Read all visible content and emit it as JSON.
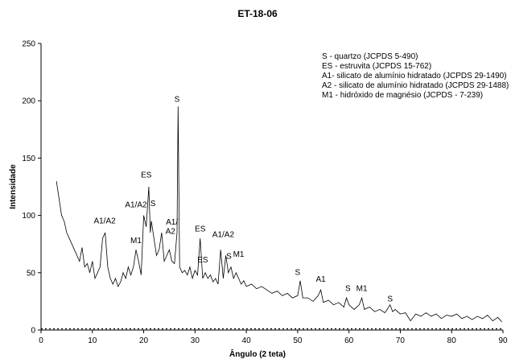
{
  "chart_data": {
    "type": "line",
    "title": "ET-18-06",
    "xlabel": "Ângulo (2 teta)",
    "ylabel": "Intensidade",
    "xlim": [
      0,
      90
    ],
    "ylim": [
      0,
      250
    ],
    "xticks": [
      0,
      10,
      20,
      30,
      40,
      50,
      60,
      70,
      80,
      90
    ],
    "yticks": [
      0,
      50,
      100,
      150,
      200,
      250
    ],
    "color": "#000000",
    "legend_lines": [
      "S - quartzo (JCPDS 5-490)",
      "ES - estruvita (JCPDS 15-762)",
      "A1- silicato de alumínio hidratado (JCPDS 29-1490)",
      "A2 - silicato de alumínio hidratado (JCPDS 29-1488)",
      "M1 - hidróxido de magnésio (JCPDS - 7-239)"
    ],
    "annotations": [
      {
        "text": "A1/A2",
        "x": 12.4,
        "y": 93
      },
      {
        "text": "ES",
        "x": 20.5,
        "y": 133
      },
      {
        "text": "A1/A2",
        "x": 18.5,
        "y": 107
      },
      {
        "text": "S",
        "x": 21.8,
        "y": 108
      },
      {
        "text": "M1",
        "x": 18.5,
        "y": 76
      },
      {
        "text": "A1/",
        "x": 25.5,
        "y": 92
      },
      {
        "text": "A2",
        "x": 25.2,
        "y": 84
      },
      {
        "text": "S",
        "x": 26.5,
        "y": 199
      },
      {
        "text": "ES",
        "x": 31,
        "y": 86
      },
      {
        "text": "ES",
        "x": 31.5,
        "y": 59
      },
      {
        "text": "A1/A2",
        "x": 35.5,
        "y": 81
      },
      {
        "text": "S",
        "x": 36.6,
        "y": 62
      },
      {
        "text": "M1",
        "x": 38.5,
        "y": 64
      },
      {
        "text": "S",
        "x": 50,
        "y": 48
      },
      {
        "text": "A1",
        "x": 54.5,
        "y": 42
      },
      {
        "text": "S",
        "x": 59.8,
        "y": 34
      },
      {
        "text": "M1",
        "x": 62.5,
        "y": 34
      },
      {
        "text": "S",
        "x": 68,
        "y": 25
      }
    ],
    "x": [
      3,
      3.5,
      4,
      4.5,
      5,
      5.5,
      6,
      6.5,
      7,
      7.5,
      8,
      8.5,
      9,
      9.5,
      10,
      10.5,
      11,
      11.5,
      12,
      12.5,
      13,
      13.5,
      14,
      14.5,
      15,
      15.5,
      16,
      16.5,
      17,
      17.5,
      18,
      18.5,
      19,
      19.5,
      20,
      20.5,
      21,
      21.3,
      21.5,
      22,
      22.5,
      23,
      23.5,
      24,
      24.5,
      25,
      25.5,
      26,
      26.5,
      26.7,
      27,
      27.5,
      28,
      28.5,
      29,
      29.5,
      30,
      30.5,
      31,
      31.5,
      32,
      32.5,
      33,
      33.5,
      34,
      34.5,
      35,
      35.5,
      36,
      36.5,
      37,
      37.5,
      38,
      38.5,
      39,
      39.5,
      40,
      41,
      42,
      43,
      44,
      45,
      46,
      47,
      48,
      49,
      50,
      50.5,
      51,
      52,
      53,
      54,
      54.5,
      55,
      56,
      57,
      58,
      59,
      59.5,
      60,
      61,
      62,
      62.5,
      63,
      64,
      65,
      66,
      67,
      68,
      68.5,
      69,
      70,
      71,
      72,
      73,
      74,
      75,
      76,
      77,
      78,
      79,
      80,
      81,
      82,
      83,
      84,
      85,
      86,
      87,
      88,
      89,
      89.8
    ],
    "values": [
      130,
      115,
      100,
      95,
      85,
      80,
      75,
      70,
      65,
      60,
      72,
      55,
      58,
      50,
      60,
      45,
      50,
      55,
      80,
      85,
      55,
      45,
      40,
      45,
      38,
      42,
      50,
      45,
      55,
      48,
      55,
      70,
      60,
      48,
      100,
      90,
      125,
      85,
      95,
      80,
      65,
      70,
      85,
      60,
      65,
      70,
      60,
      58,
      85,
      195,
      55,
      50,
      52,
      48,
      55,
      45,
      52,
      48,
      80,
      45,
      50,
      45,
      48,
      42,
      45,
      40,
      70,
      45,
      65,
      50,
      55,
      45,
      50,
      45,
      40,
      43,
      38,
      40,
      36,
      38,
      35,
      32,
      34,
      30,
      32,
      28,
      30,
      43,
      28,
      28,
      25,
      30,
      35,
      24,
      26,
      22,
      24,
      20,
      28,
      22,
      18,
      22,
      28,
      18,
      20,
      16,
      18,
      15,
      22,
      16,
      18,
      14,
      15,
      8,
      14,
      12,
      15,
      12,
      14,
      10,
      13,
      12,
      14,
      10,
      12,
      9,
      12,
      10,
      13,
      8,
      11,
      7
    ]
  }
}
